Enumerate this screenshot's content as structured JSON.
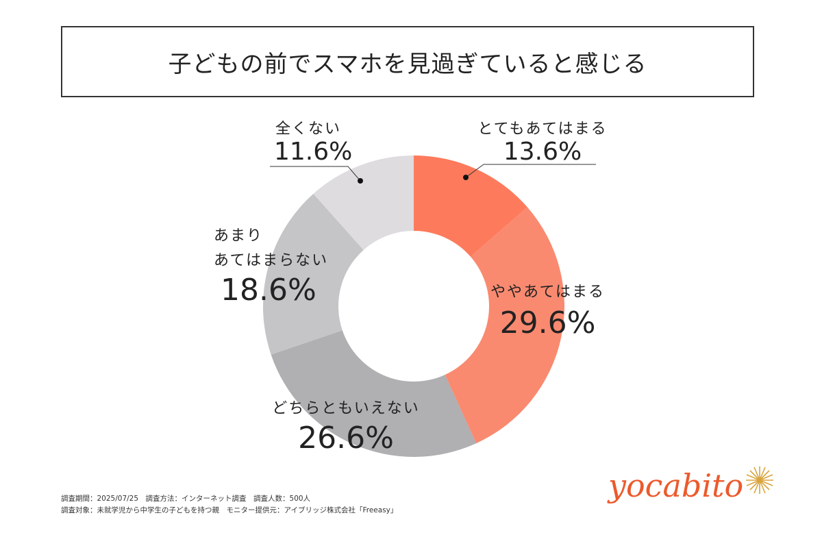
{
  "title": "子どもの前でスマホを見過ぎていると感じる",
  "chart_data": {
    "type": "pie",
    "variant": "donut",
    "title": "子どもの前でスマホを見過ぎていると感じる",
    "categories": [
      "とてもあてはまる",
      "ややあてはまる",
      "どちらともいえない",
      "あまりあてはまらない",
      "全くない"
    ],
    "values": [
      13.6,
      29.6,
      26.6,
      18.6,
      11.6
    ],
    "unit": "%",
    "colors": [
      "#fd7b5c",
      "#f98a70",
      "#b0afb1",
      "#c5c4c6",
      "#dedcdf"
    ],
    "start_angle": "12 o'clock, clockwise",
    "legend": "none (direct labels)"
  },
  "labels": {
    "s0": {
      "name": "とてもあてはまる",
      "pct": "13.6%"
    },
    "s1": {
      "name": "ややあてはまる",
      "pct": "29.6%"
    },
    "s2": {
      "name": "どちらともいえない",
      "pct": "26.6%"
    },
    "s3": {
      "name_line1": "あまり",
      "name_line2": "あてはまらない",
      "pct": "18.6%"
    },
    "s4": {
      "name": "全くない",
      "pct": "11.6%"
    }
  },
  "footnote": {
    "line1": "調査期間：2025/07/25　調査方法：インターネット調査　調査人数：500人",
    "line2": "調査対象：未就学児から中学生の子どもを持つ親　モニター提供元：アイブリッジ株式会社「Freeasy」"
  },
  "logo": {
    "text": "yocabito",
    "color": "#ec5a2c",
    "star_color": "#d9a43c"
  }
}
